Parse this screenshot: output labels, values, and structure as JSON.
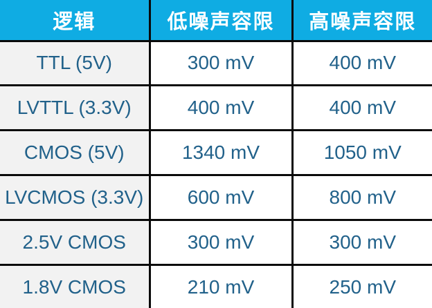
{
  "table": {
    "title": "logic-noise-margin-table",
    "headers": [
      "逻辑",
      "低噪声容限",
      "高噪声容限"
    ],
    "rows": [
      {
        "logic": "TTL (5V)",
        "low": "300 mV",
        "high": "400 mV"
      },
      {
        "logic": "LVTTL (3.3V)",
        "low": "400 mV",
        "high": "400 mV"
      },
      {
        "logic": "CMOS (5V)",
        "low": "1340 mV",
        "high": "1050 mV"
      },
      {
        "logic": "LVCMOS (3.3V)",
        "low": "600 mV",
        "high": "800 mV"
      },
      {
        "logic": "2.5V CMOS",
        "low": "300 mV",
        "high": "300 mV"
      },
      {
        "logic": "1.8V CMOS",
        "low": "210 mV",
        "high": "250 mV"
      }
    ],
    "colors": {
      "header_bg": "#0FACE3",
      "header_text": "#FFFFFF",
      "body_text": "#21618A",
      "first_col_bg": "#F2F2F2",
      "cell_bg": "#FFFFFF",
      "border": "#0A0A0A"
    }
  }
}
